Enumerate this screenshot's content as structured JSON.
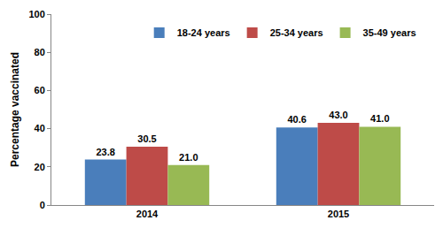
{
  "chart_data": {
    "type": "bar",
    "categories": [
      "2014",
      "2015"
    ],
    "series": [
      {
        "name": "18-24 years",
        "color": "#4a7ebb",
        "values": [
          23.8,
          40.6
        ],
        "value_labels": [
          "23.8",
          "40.6"
        ]
      },
      {
        "name": "25-34 years",
        "color": "#be4b48",
        "values": [
          30.5,
          43.0
        ],
        "value_labels": [
          "30.5",
          "43.0"
        ]
      },
      {
        "name": "35-49 years",
        "color": "#98b954",
        "values": [
          21.0,
          41.0
        ],
        "value_labels": [
          "21.0",
          "41.0"
        ]
      }
    ],
    "y_label": "Percentage vaccinated",
    "ylim": [
      0,
      100
    ],
    "yticks": [
      0,
      20,
      40,
      60,
      80,
      100
    ],
    "grid": false,
    "legend": "upper center",
    "data_labels": true
  }
}
